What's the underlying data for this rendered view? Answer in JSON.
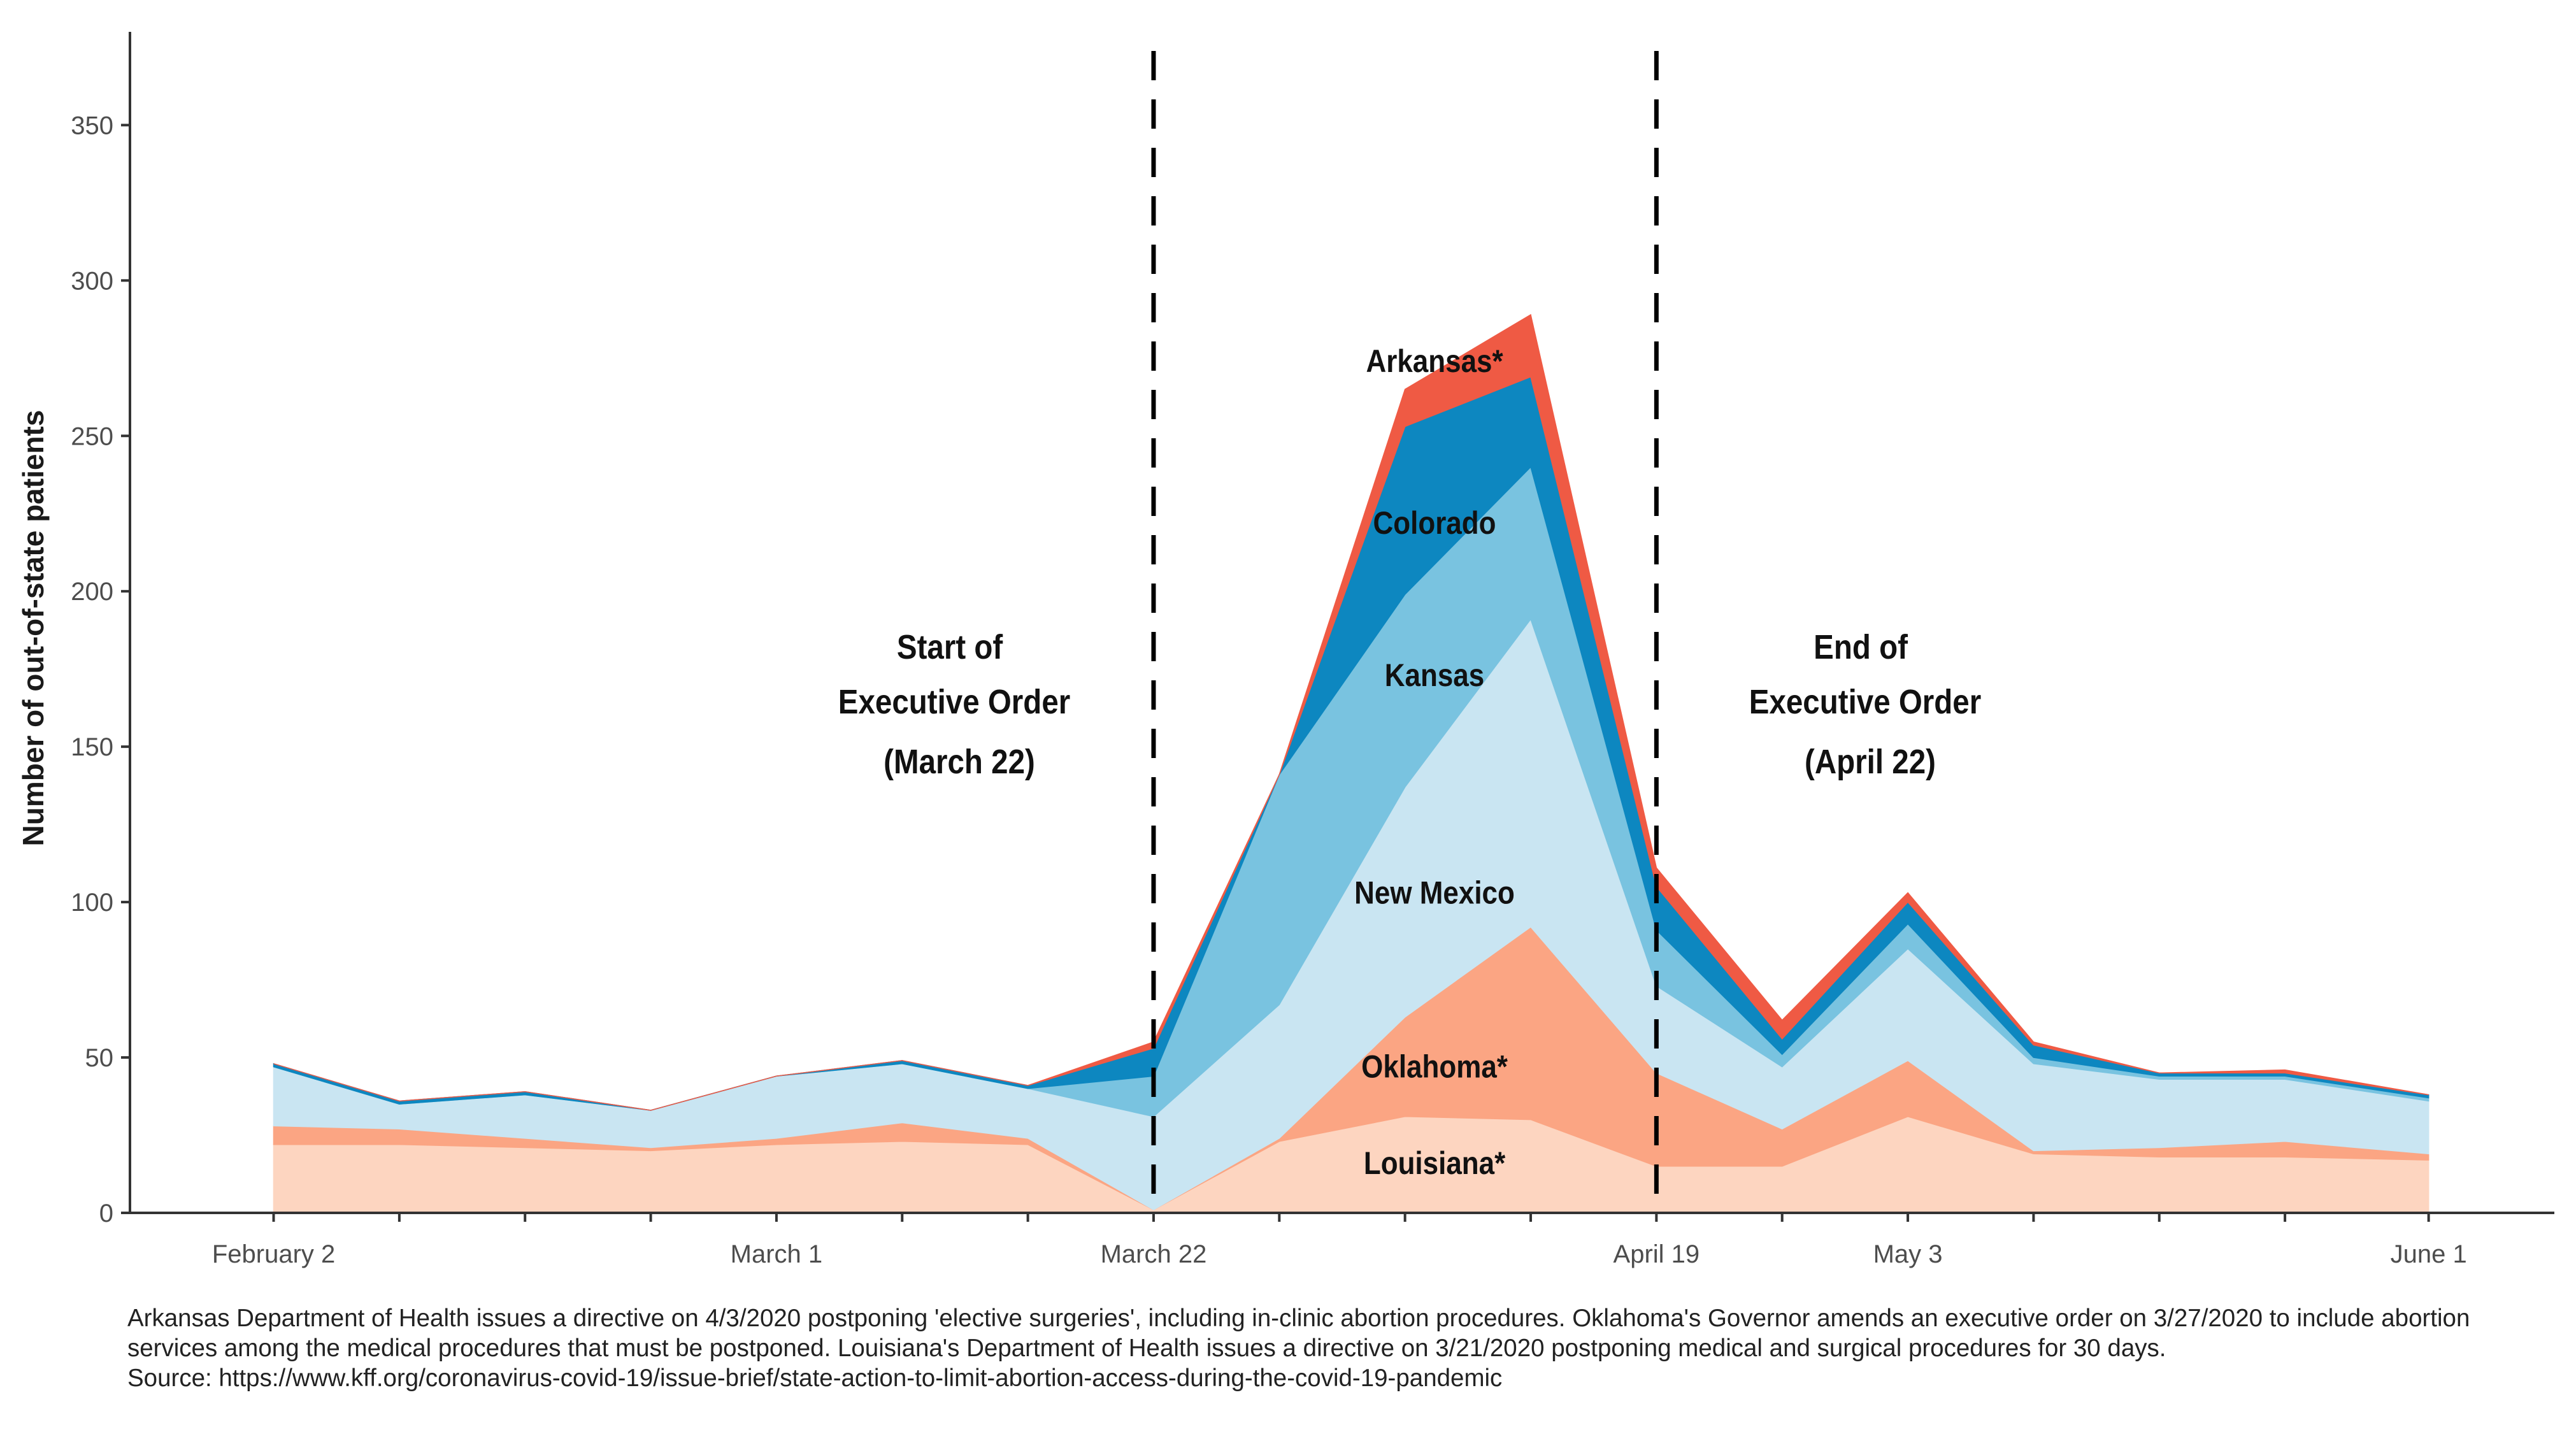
{
  "chart_data": {
    "type": "area",
    "stacked": true,
    "title": "",
    "xlabel": "",
    "ylabel": "Number of out-of-state patients",
    "ylim": [
      0,
      380
    ],
    "yticks": [
      0,
      50,
      100,
      150,
      200,
      250,
      300,
      350
    ],
    "grid": false,
    "x": [
      "2020-02-02",
      "2020-02-09",
      "2020-02-16",
      "2020-02-23",
      "2020-03-01",
      "2020-03-08",
      "2020-03-15",
      "2020-03-22",
      "2020-03-29",
      "2020-04-05",
      "2020-04-12",
      "2020-04-19",
      "2020-04-26",
      "2020-05-03",
      "2020-05-10",
      "2020-05-17",
      "2020-05-24",
      "2020-06-01"
    ],
    "xticks": [
      {
        "x": "2020-02-02",
        "label": "February 2"
      },
      {
        "x": "2020-03-01",
        "label": "March 1"
      },
      {
        "x": "2020-03-22",
        "label": "March 22"
      },
      {
        "x": "2020-04-19",
        "label": "April 19"
      },
      {
        "x": "2020-05-03",
        "label": "May 3"
      },
      {
        "x": "2020-06-01",
        "label": "June 1"
      }
    ],
    "series": [
      {
        "name": "Louisiana*",
        "color": "#fdd5c0",
        "values": [
          22,
          22,
          21,
          20,
          22,
          23,
          22,
          1,
          23,
          31,
          30,
          15,
          15,
          31,
          19,
          18,
          18,
          17
        ]
      },
      {
        "name": "Oklahoma*",
        "color": "#fba583",
        "values": [
          6,
          5,
          3,
          1,
          2,
          6,
          2,
          0,
          1,
          32,
          62,
          30,
          12,
          18,
          1,
          3,
          5,
          2
        ]
      },
      {
        "name": "New Mexico",
        "color": "#c9e5f2",
        "values": [
          19,
          8,
          14,
          12,
          20,
          19,
          16,
          30,
          43,
          74,
          99,
          28,
          20,
          36,
          28,
          22,
          20,
          17
        ]
      },
      {
        "name": "Kansas",
        "color": "#79c3e0",
        "values": [
          0,
          0,
          0,
          0,
          0,
          0,
          0,
          13,
          74,
          62,
          49,
          18,
          4,
          8,
          2,
          1,
          1,
          1
        ]
      },
      {
        "name": "Colorado",
        "color": "#0d87c0",
        "values": [
          1,
          1,
          1,
          0,
          0,
          1,
          1,
          9,
          0,
          54,
          29,
          14,
          5,
          7,
          4,
          1,
          1,
          1
        ]
      },
      {
        "name": "Arkansas*",
        "color": "#ef5a44",
        "values": [
          0,
          0,
          0,
          0,
          0,
          0,
          0,
          2,
          0,
          12,
          20,
          6,
          6,
          3,
          1,
          0,
          1,
          0
        ]
      }
    ],
    "vlines": [
      {
        "x": "2020-03-22",
        "style": "dashed"
      },
      {
        "x": "2020-04-19",
        "style": "dashed"
      }
    ],
    "annotations": {
      "start_order": [
        "Start of",
        "Executive Order",
        "(March 22)"
      ],
      "end_order": [
        "End of",
        "Executive Order",
        "(April 22)"
      ]
    }
  },
  "footnote": {
    "line1": "Arkansas Department of Health issues a directive on 4/3/2020 postponing 'elective surgeries', including in-clinic abortion procedures. Oklahoma's Governor amends an executive order on 3/27/2020 to include abortion",
    "line2": "services among the medical procedures that must be postponed. Louisiana's Department of Health issues a directive  on 3/21/2020 postponing medical and surgical procedures for 30 days.",
    "source": "Source: https://www.kff.org/coronavirus-covid-19/issue-brief/state-action-to-limit-abortion-access-during-the-covid-19-pandemic"
  }
}
